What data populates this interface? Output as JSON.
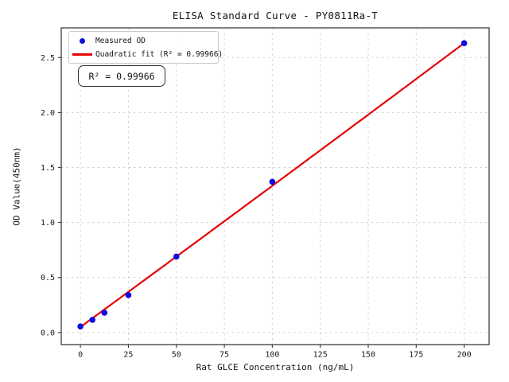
{
  "chart_data": {
    "type": "scatter",
    "title": "ELISA Standard Curve - PY0811Ra-T",
    "xlabel": "Rat GLCE Concentration (ng/mL)",
    "ylabel": "OD Value(450nm)",
    "xlim": [
      -10,
      213
    ],
    "ylim": [
      -0.11,
      2.77
    ],
    "x_ticks": [
      0,
      25,
      50,
      75,
      100,
      125,
      150,
      175,
      200
    ],
    "x_tick_labels": [
      "0",
      "25",
      "50",
      "75",
      "100",
      "125",
      "150",
      "175",
      "200"
    ],
    "y_ticks": [
      0.0,
      0.5,
      1.0,
      1.5,
      2.0,
      2.5
    ],
    "y_tick_labels": [
      "0.0",
      "0.5",
      "1.0",
      "1.5",
      "2.0",
      "2.5"
    ],
    "grid": true,
    "grid_style": "dashed",
    "legend_position": "upper left",
    "series": [
      {
        "name": "Measured OD",
        "type": "scatter",
        "color": "#0d0de0",
        "x": [
          0,
          6.25,
          12.5,
          25,
          50,
          100,
          200
        ],
        "y": [
          0.055,
          0.115,
          0.18,
          0.34,
          0.69,
          1.37,
          2.63
        ]
      },
      {
        "name": "Quadratic fit (R² = 0.99966)",
        "type": "line",
        "color": "#e30505",
        "fit": "quadratic",
        "coeffs": [
          0.05,
          0.01277,
          6.7e-07
        ],
        "x_range": [
          0,
          200
        ]
      }
    ],
    "annotation": {
      "text": "R² = 0.99966"
    },
    "r_squared": 0.99966,
    "colors": {
      "marker": "#0d0de0",
      "line": "#e30505",
      "grid": "#cfcfcf",
      "spine": "#3c3c3c",
      "background": "#ffffff"
    }
  }
}
